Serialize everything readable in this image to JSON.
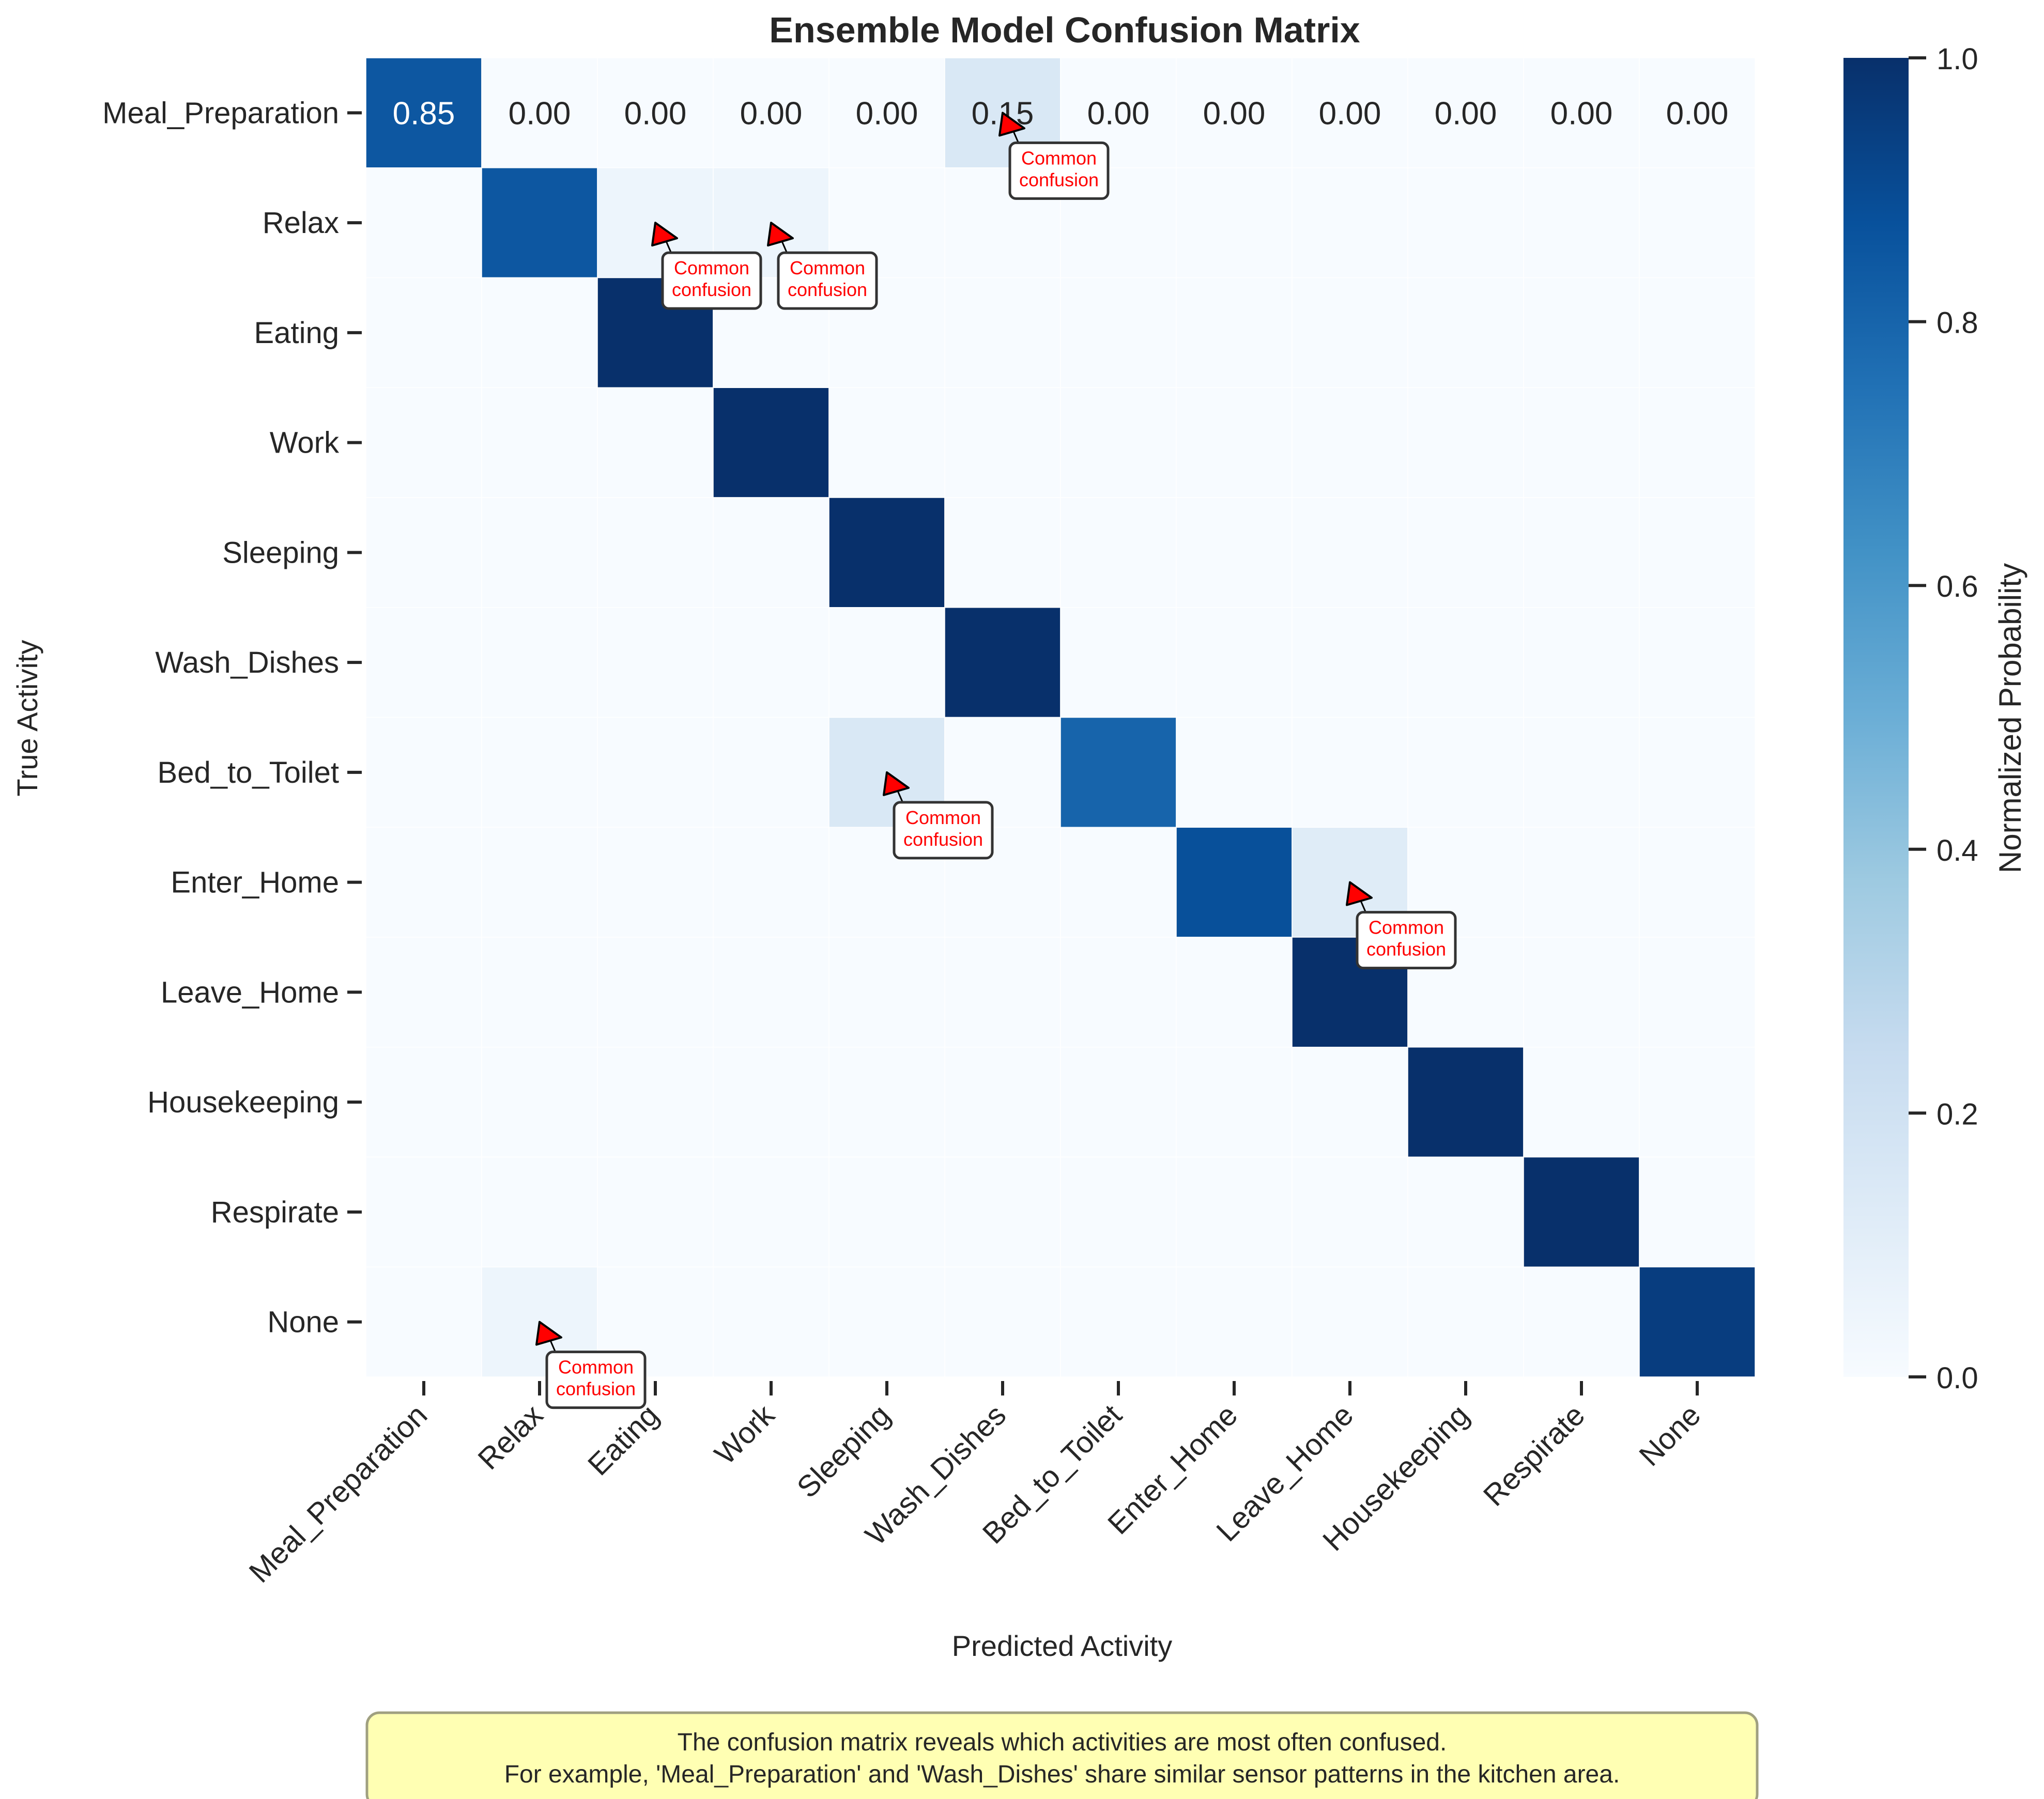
{
  "colors": {
    "low": "#f7fbff",
    "mid_low": "#c6dbef",
    "mid": "#6baed6",
    "mid_high": "#2171b5",
    "high": "#08306b",
    "annotation_text": "#ff0000",
    "annotation_arrow": "#ff0000",
    "footnote_bg": "#ffffb3"
  },
  "chart_data": {
    "type": "heatmap",
    "title": "Ensemble Model Confusion Matrix",
    "xlabel": "Predicted Activity",
    "ylabel": "True Activity",
    "categories": [
      "Meal_Preparation",
      "Relax",
      "Eating",
      "Work",
      "Sleeping",
      "Wash_Dishes",
      "Bed_to_Toilet",
      "Enter_Home",
      "Leave_Home",
      "Housekeeping",
      "Respirate",
      "None"
    ],
    "matrix": [
      [
        0.85,
        0.0,
        0.0,
        0.0,
        0.0,
        0.15,
        0.0,
        0.0,
        0.0,
        0.0,
        0.0,
        0.0
      ],
      [
        0.0,
        0.85,
        0.05,
        0.05,
        0.0,
        0.0,
        0.0,
        0.0,
        0.0,
        0.0,
        0.0,
        0.0
      ],
      [
        0.0,
        0.0,
        1.0,
        0.0,
        0.0,
        0.0,
        0.0,
        0.0,
        0.0,
        0.0,
        0.0,
        0.0
      ],
      [
        0.0,
        0.0,
        0.0,
        1.0,
        0.0,
        0.0,
        0.0,
        0.0,
        0.0,
        0.0,
        0.0,
        0.0
      ],
      [
        0.0,
        0.0,
        0.0,
        0.0,
        1.0,
        0.0,
        0.0,
        0.0,
        0.0,
        0.0,
        0.0,
        0.0
      ],
      [
        0.0,
        0.0,
        0.0,
        0.0,
        0.0,
        1.0,
        0.0,
        0.0,
        0.0,
        0.0,
        0.0,
        0.0
      ],
      [
        0.0,
        0.0,
        0.0,
        0.0,
        0.15,
        0.0,
        0.8,
        0.0,
        0.0,
        0.0,
        0.0,
        0.0
      ],
      [
        0.0,
        0.0,
        0.0,
        0.0,
        0.0,
        0.0,
        0.0,
        0.88,
        0.12,
        0.0,
        0.0,
        0.0
      ],
      [
        0.0,
        0.0,
        0.0,
        0.0,
        0.0,
        0.0,
        0.0,
        0.0,
        1.0,
        0.0,
        0.0,
        0.0
      ],
      [
        0.0,
        0.0,
        0.0,
        0.0,
        0.0,
        0.0,
        0.0,
        0.0,
        0.0,
        1.0,
        0.0,
        0.0
      ],
      [
        0.0,
        0.0,
        0.0,
        0.0,
        0.0,
        0.0,
        0.0,
        0.0,
        0.0,
        0.0,
        1.0,
        0.0
      ],
      [
        0.0,
        0.05,
        0.0,
        0.0,
        0.0,
        0.0,
        0.0,
        0.0,
        0.0,
        0.0,
        0.0,
        0.95
      ]
    ],
    "annotated_rows": [
      0
    ],
    "value_format": "2 decimals",
    "annotations": [
      {
        "row": 0,
        "col": 5,
        "text": "Common\nconfusion"
      },
      {
        "row": 1,
        "col": 2,
        "text": "Common\nconfusion"
      },
      {
        "row": 1,
        "col": 3,
        "text": "Common\nconfusion"
      },
      {
        "row": 6,
        "col": 4,
        "text": "Common\nconfusion"
      },
      {
        "row": 7,
        "col": 8,
        "text": "Common\nconfusion"
      },
      {
        "row": 11,
        "col": 1,
        "text": "Common\nconfusion"
      }
    ],
    "colorbar": {
      "label": "Normalized Probability",
      "range": [
        0.0,
        1.0
      ],
      "ticks": [
        "0.0",
        "0.2",
        "0.4",
        "0.6",
        "0.8",
        "1.0"
      ],
      "colormap": "Blues"
    },
    "footnote": [
      "The confusion matrix reveals which activities are most often confused.",
      "For example, 'Meal_Preparation' and 'Wash_Dishes' share similar sensor patterns in the kitchen area."
    ]
  }
}
